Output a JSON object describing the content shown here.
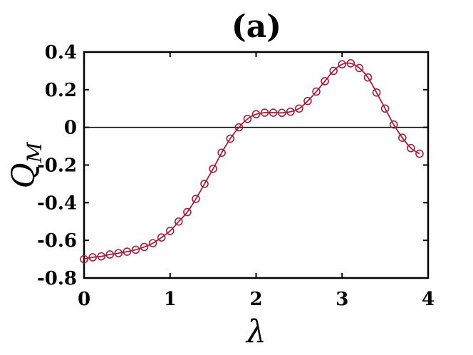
{
  "chart_data": {
    "type": "line",
    "title": "(a)",
    "xlabel": "λ",
    "ylabel": "Q",
    "ylabel_subscript": "M",
    "xlim": [
      0,
      4
    ],
    "ylim": [
      -0.8,
      0.4
    ],
    "xticks": [
      0,
      1,
      2,
      3,
      4
    ],
    "xtick_labels": [
      "0",
      "1",
      "2",
      "3",
      "4"
    ],
    "yticks": [
      -0.8,
      -0.6,
      -0.4,
      -0.2,
      0,
      0.2,
      0.4
    ],
    "ytick_labels": [
      "-0.8",
      "-0.6",
      "-0.4",
      "-0.2",
      "0",
      "0.2",
      "0.4"
    ],
    "reference_line_y": 0,
    "grid": false,
    "line_color": "#a0203c",
    "marker": "open-circle",
    "series": [
      {
        "x": [
          0,
          0.1,
          0.2,
          0.3,
          0.4,
          0.5,
          0.6,
          0.7,
          0.8,
          0.9,
          1.0,
          1.1,
          1.2,
          1.3,
          1.4,
          1.5,
          1.6,
          1.7,
          1.8,
          1.9,
          2.0,
          2.1,
          2.2,
          2.3,
          2.4,
          2.5,
          2.6,
          2.7,
          2.8,
          2.9,
          3.0,
          3.1,
          3.2,
          3.3,
          3.4,
          3.5,
          3.6,
          3.7,
          3.8,
          3.9
        ],
        "values": [
          -0.7,
          -0.69,
          -0.685,
          -0.675,
          -0.668,
          -0.66,
          -0.65,
          -0.635,
          -0.615,
          -0.585,
          -0.55,
          -0.5,
          -0.45,
          -0.38,
          -0.3,
          -0.22,
          -0.135,
          -0.06,
          0.0,
          0.045,
          0.07,
          0.078,
          0.078,
          0.077,
          0.083,
          0.1,
          0.14,
          0.19,
          0.245,
          0.3,
          0.335,
          0.34,
          0.315,
          0.265,
          0.185,
          0.1,
          0.015,
          -0.055,
          -0.11,
          -0.14
        ]
      }
    ]
  }
}
